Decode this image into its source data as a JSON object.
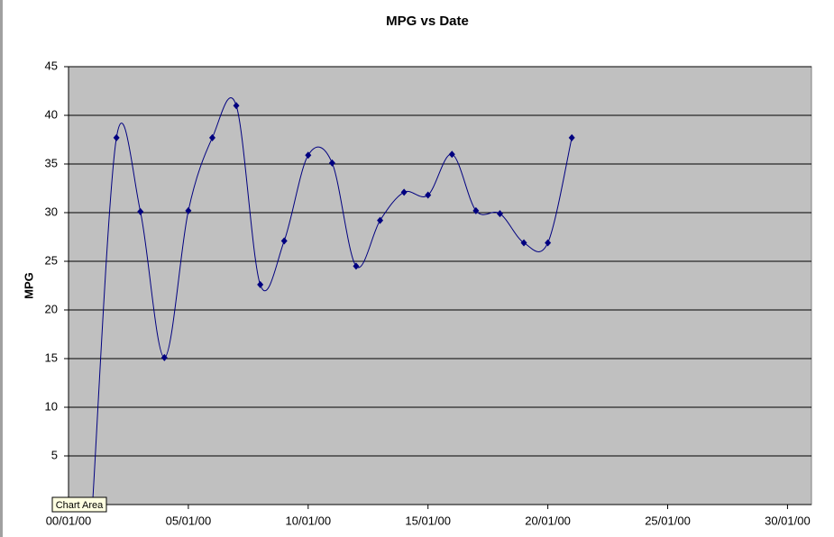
{
  "chart_data": {
    "type": "line",
    "title": "MPG vs Date",
    "y_label": "MPG",
    "x": [
      1,
      2,
      3,
      4,
      5,
      6,
      7,
      8,
      9,
      10,
      11,
      12,
      13,
      14,
      15,
      16,
      17,
      18,
      19,
      20,
      21
    ],
    "values": [
      0,
      37.7,
      30.1,
      15.1,
      30.2,
      37.7,
      41.0,
      22.6,
      27.1,
      35.9,
      35.1,
      24.5,
      29.2,
      32.1,
      31.8,
      36.0,
      30.2,
      29.9,
      26.9,
      26.9,
      37.7
    ],
    "color": "#000080",
    "smooth": true,
    "grid": true,
    "xlim": [
      0,
      31
    ],
    "xticks": [
      {
        "value": 0,
        "label": "00/01/00"
      },
      {
        "value": 5,
        "label": "05/01/00"
      },
      {
        "value": 10,
        "label": "10/01/00"
      },
      {
        "value": 15,
        "label": "15/01/00"
      },
      {
        "value": 20,
        "label": "20/01/00"
      },
      {
        "value": 25,
        "label": "25/01/00"
      },
      {
        "value": 30,
        "label": "30/01/00"
      }
    ],
    "ylim": [
      0,
      45
    ],
    "yticks": [
      5,
      10,
      15,
      20,
      25,
      30,
      35,
      40,
      45
    ],
    "tooltip": "Chart Area"
  }
}
